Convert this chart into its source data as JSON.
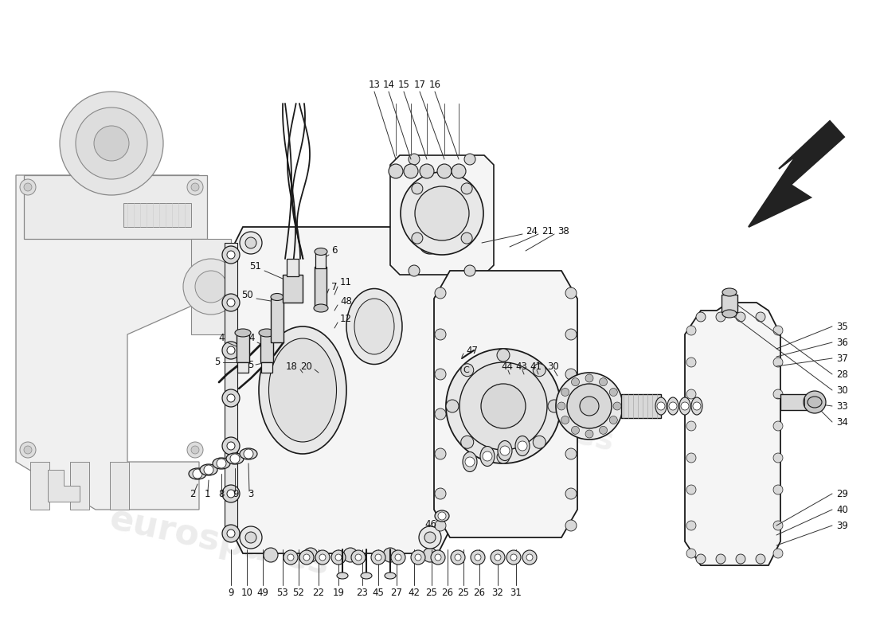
{
  "bg_color": "#ffffff",
  "line_color": "#1a1a1a",
  "light_line": "#888888",
  "fill_light": "#f5f5f5",
  "fill_mid": "#e8e8e8",
  "fill_dark": "#d8d8d8",
  "watermark_text": "eurospares",
  "watermark_color": "#d5d5d5",
  "fs": 8.5,
  "arrow_color": "#2a2a2a"
}
